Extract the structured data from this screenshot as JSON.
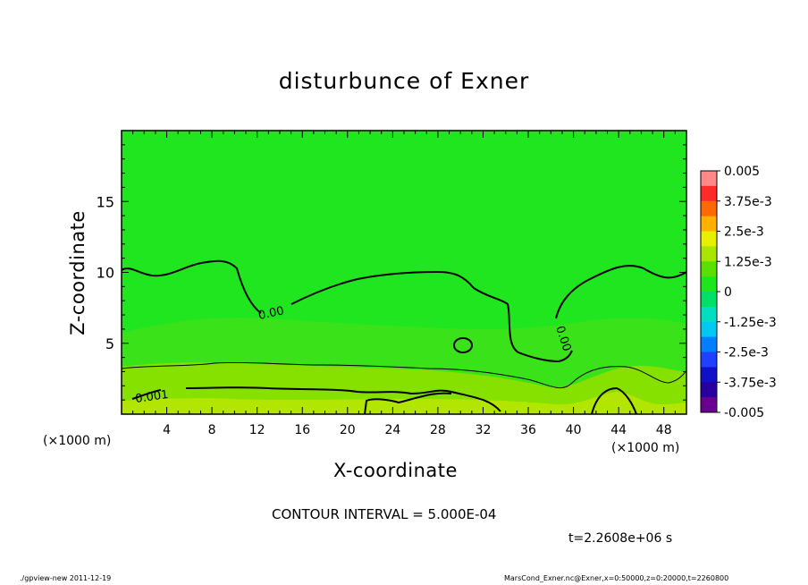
{
  "chart_data": {
    "type": "heatmap",
    "title": "disturbunce of Exner",
    "xlabel": "X-coordinate",
    "ylabel": "Z-coordinate",
    "x_unit": "(×1000 m)",
    "x_ticks": [
      4,
      8,
      12,
      16,
      20,
      24,
      28,
      32,
      36,
      40,
      44,
      48
    ],
    "y_ticks": [
      5,
      10,
      15
    ],
    "xlim": [
      0,
      50
    ],
    "ylim": [
      0,
      20
    ],
    "colorbar": {
      "labels": [
        "0.005",
        "3.75e-3",
        "2.5e-3",
        "1.25e-3",
        "0",
        "-1.25e-3",
        "-2.5e-3",
        "-3.75e-3",
        "-0.005"
      ],
      "range": [
        -0.005,
        0.005
      ],
      "colors": [
        "#ff8888",
        "#ff2a2a",
        "#ff6a00",
        "#ffb000",
        "#e6f000",
        "#a8e600",
        "#58e000",
        "#1ee61e",
        "#00e066",
        "#00e0c0",
        "#00c8f0",
        "#0080ff",
        "#2040ff",
        "#1010c8",
        "#2800a0",
        "#6a0090"
      ]
    },
    "contour_labels": [
      "0.00",
      "0.00",
      "0.001"
    ],
    "contour_interval": "CONTOUR INTERVAL = 5.000E-04",
    "time_label": "t=2.2608e+06 s",
    "footer_left": "./gpview-new  2011-12-19",
    "footer_right": "MarsCond_Exner.nc@Exner,x=0:50000,z=0:20000,t=2260800"
  }
}
